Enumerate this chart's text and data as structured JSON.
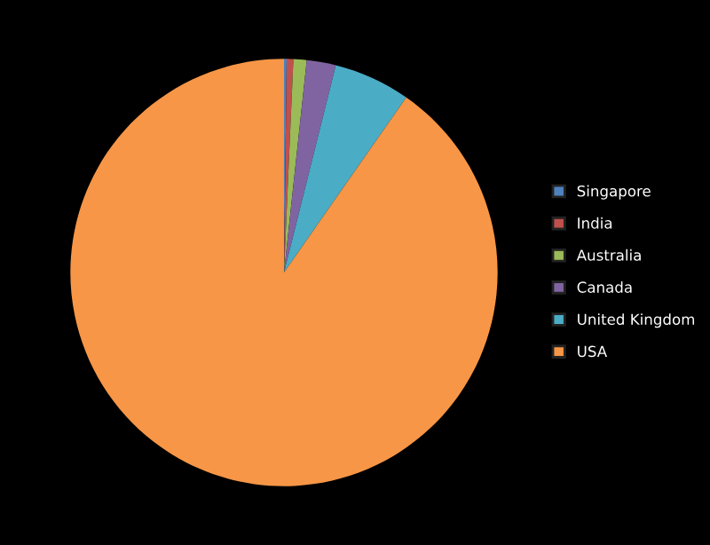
{
  "chart_data": {
    "type": "pie",
    "categories": [
      "Singapore",
      "India",
      "Australia",
      "Canada",
      "United Kingdom",
      "USA"
    ],
    "values": [
      0.2,
      0.5,
      1.0,
      2.2,
      5.8,
      90.3
    ],
    "colors": [
      "#4f81bd",
      "#c0504d",
      "#9bbb59",
      "#8064a2",
      "#4bacc6",
      "#f79646"
    ],
    "legend": "right"
  }
}
